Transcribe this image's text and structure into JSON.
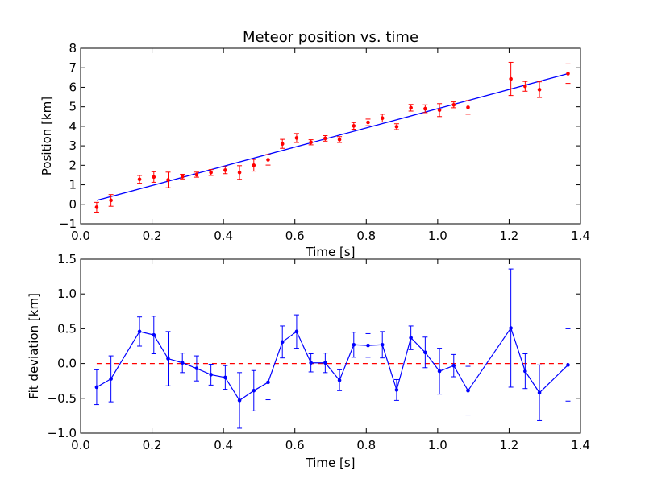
{
  "chart_data": [
    {
      "type": "scatter",
      "title": "Meteor position vs. time",
      "xlabel": "Time [s]",
      "ylabel": "Position [km]",
      "xlim": [
        0.0,
        1.4
      ],
      "ylim": [
        -1,
        8
      ],
      "xticks": [
        "0.0",
        "0.2",
        "0.4",
        "0.6",
        "0.8",
        "1.0",
        "1.2",
        "1.4"
      ],
      "yticks": [
        "−1",
        "0",
        "1",
        "2",
        "3",
        "4",
        "5",
        "6",
        "7",
        "8"
      ],
      "grid": false,
      "colors": {
        "points": "#ff0000",
        "fit": "#0000ff"
      },
      "series": [
        {
          "kind": "errorbar",
          "x": [
            0.045,
            0.085,
            0.165,
            0.205,
            0.245,
            0.285,
            0.325,
            0.365,
            0.405,
            0.445,
            0.485,
            0.525,
            0.565,
            0.605,
            0.645,
            0.685,
            0.725,
            0.765,
            0.805,
            0.845,
            0.885,
            0.925,
            0.965,
            1.005,
            1.045,
            1.085,
            1.205,
            1.245,
            1.285,
            1.365
          ],
          "y": [
            -0.15,
            0.2,
            1.28,
            1.4,
            1.25,
            1.42,
            1.52,
            1.63,
            1.75,
            1.63,
            2.0,
            2.28,
            3.1,
            3.4,
            3.18,
            3.38,
            3.32,
            4.02,
            4.2,
            4.42,
            3.98,
            4.95,
            4.9,
            4.83,
            5.1,
            4.97,
            6.43,
            6.05,
            5.88,
            6.7
          ],
          "yerr": [
            0.25,
            0.3,
            0.2,
            0.27,
            0.4,
            0.12,
            0.13,
            0.15,
            0.18,
            0.35,
            0.3,
            0.27,
            0.23,
            0.23,
            0.13,
            0.14,
            0.15,
            0.17,
            0.17,
            0.2,
            0.15,
            0.17,
            0.2,
            0.33,
            0.15,
            0.35,
            0.85,
            0.25,
            0.4,
            0.5
          ]
        },
        {
          "kind": "line",
          "x": [
            0.045,
            1.365
          ],
          "y": [
            0.2,
            6.7
          ]
        }
      ]
    },
    {
      "type": "line",
      "title": "",
      "xlabel": "Time [s]",
      "ylabel": "Fit deviation [km]",
      "xlim": [
        0.0,
        1.4
      ],
      "ylim": [
        -1.0,
        1.5
      ],
      "xticks": [
        "0.0",
        "0.2",
        "0.4",
        "0.6",
        "0.8",
        "1.0",
        "1.2",
        "1.4"
      ],
      "yticks": [
        "−1.0",
        "−0.5",
        "0.0",
        "0.5",
        "1.0",
        "1.5"
      ],
      "grid": false,
      "colors": {
        "series": "#0000ff",
        "zero_line": "#ff0000"
      },
      "reference_line": {
        "y": 0.0,
        "style": "dashed"
      },
      "series": [
        {
          "kind": "errorbar-line",
          "x": [
            0.045,
            0.085,
            0.165,
            0.205,
            0.245,
            0.285,
            0.325,
            0.365,
            0.405,
            0.445,
            0.485,
            0.525,
            0.565,
            0.605,
            0.645,
            0.685,
            0.725,
            0.765,
            0.805,
            0.845,
            0.885,
            0.925,
            0.965,
            1.005,
            1.045,
            1.085,
            1.205,
            1.245,
            1.285,
            1.365
          ],
          "y": [
            -0.34,
            -0.22,
            0.46,
            0.41,
            0.07,
            0.01,
            -0.07,
            -0.16,
            -0.2,
            -0.53,
            -0.39,
            -0.27,
            0.31,
            0.46,
            0.01,
            0.01,
            -0.24,
            0.27,
            0.26,
            0.27,
            -0.38,
            0.37,
            0.16,
            -0.11,
            -0.03,
            -0.39,
            0.51,
            -0.11,
            -0.42,
            -0.02
          ],
          "yerr": [
            0.25,
            0.33,
            0.21,
            0.27,
            0.39,
            0.14,
            0.18,
            0.15,
            0.17,
            0.4,
            0.29,
            0.25,
            0.23,
            0.24,
            0.13,
            0.14,
            0.15,
            0.18,
            0.17,
            0.19,
            0.15,
            0.17,
            0.22,
            0.33,
            0.16,
            0.35,
            0.85,
            0.25,
            0.4,
            0.52
          ]
        }
      ]
    }
  ]
}
